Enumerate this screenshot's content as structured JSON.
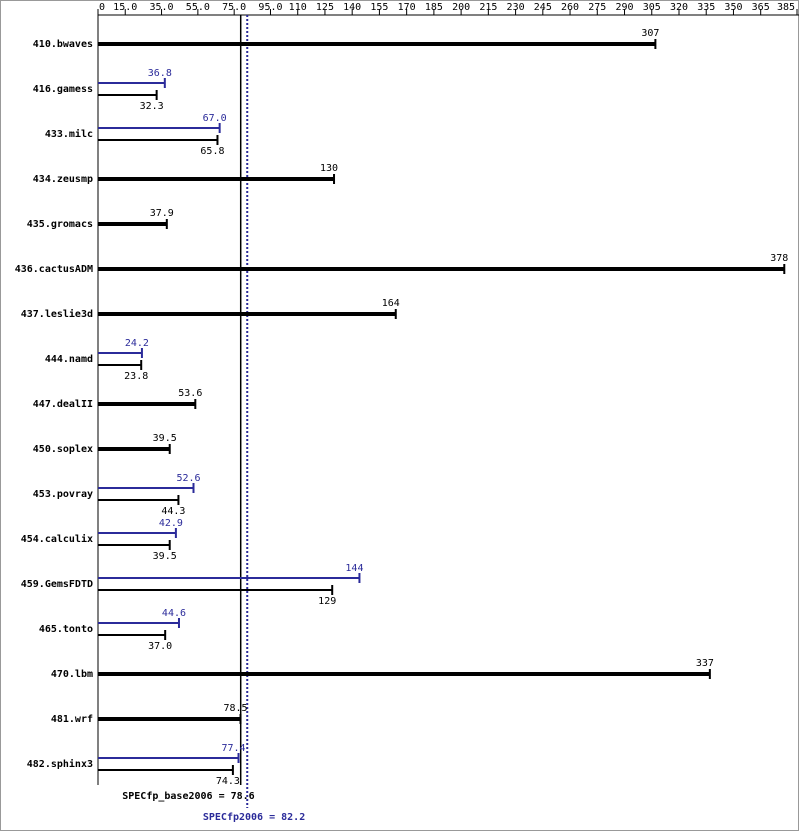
{
  "chart_data": {
    "type": "spec-bar",
    "categories": [
      "410.bwaves",
      "416.gamess",
      "433.milc",
      "434.zeusmp",
      "435.gromacs",
      "436.cactusADM",
      "437.leslie3d",
      "444.namd",
      "447.dealII",
      "450.soplex",
      "453.povray",
      "454.calculix",
      "459.GemsFDTD",
      "465.tonto",
      "470.lbm",
      "481.wrf",
      "482.sphinx3"
    ],
    "base_values": [
      307,
      32.3,
      65.8,
      130,
      37.9,
      378,
      164,
      23.8,
      53.6,
      39.5,
      44.3,
      39.5,
      129,
      37.0,
      337,
      78.5,
      74.3
    ],
    "base_value_labels": [
      "307",
      "32.3",
      "65.8",
      "130",
      "37.9",
      "378",
      "164",
      "23.8",
      "53.6",
      "39.5",
      "44.3",
      "39.5",
      "129",
      "37.0",
      "337",
      "78.5",
      "74.3"
    ],
    "base_color": "#000000",
    "peak_values": [
      null,
      36.8,
      67.0,
      null,
      null,
      null,
      null,
      24.2,
      null,
      null,
      52.6,
      42.9,
      144,
      44.6,
      null,
      null,
      77.4
    ],
    "peak_value_labels": [
      null,
      "36.8",
      "67.0",
      null,
      null,
      null,
      null,
      "24.2",
      null,
      null,
      "52.6",
      "42.9",
      "144",
      "44.6",
      null,
      null,
      "77.4"
    ],
    "peak_color": "#2b2b9a",
    "xlim": [
      0,
      385
    ],
    "xticks": [
      0,
      {
        "value": 15,
        "label": "15.0"
      },
      {
        "value": 35,
        "label": "35.0"
      },
      {
        "value": 55,
        "label": "55.0"
      },
      {
        "value": 75,
        "label": "75.0"
      },
      {
        "value": 95,
        "label": "95.0"
      },
      110,
      125,
      140,
      155,
      170,
      185,
      200,
      215,
      230,
      245,
      260,
      275,
      290,
      305,
      320,
      335,
      350,
      365,
      385
    ],
    "reference_lines": [
      {
        "label": "SPECfp_base2006 = 78.6",
        "value": 78.6,
        "color": "#000000",
        "style": "solid"
      },
      {
        "label": "SPECfp2006 = 82.2",
        "value": 82.2,
        "color": "#2b2b9a",
        "style": "dotted"
      }
    ]
  }
}
